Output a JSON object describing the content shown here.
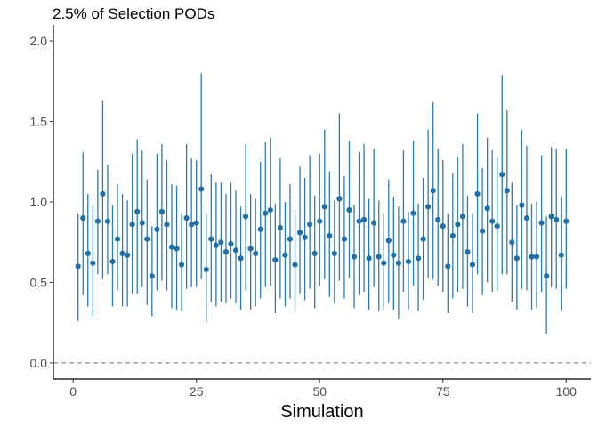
{
  "chart_data": {
    "type": "scatter",
    "title": "2.5% of Selection PODs",
    "xlabel": "Simulation",
    "ylabel": "",
    "xlim": [
      -4,
      105
    ],
    "ylim": [
      -0.1,
      2.1
    ],
    "x_ticks": [
      0,
      25,
      50,
      75,
      100
    ],
    "x_tick_labels": [
      "0",
      "25",
      "50",
      "75",
      "100"
    ],
    "y_ticks": [
      0.0,
      0.5,
      1.0,
      1.5,
      2.0
    ],
    "y_tick_labels": [
      "0.0",
      "0.5",
      "1.0",
      "1.5",
      "2.0"
    ],
    "reference_line": {
      "y": 0,
      "style": "dashed"
    },
    "grid": false,
    "point_color": "#1f6fa9",
    "line_color": "#2b7bba",
    "reference_color": "#888888",
    "series": [
      {
        "x": [
          1,
          2,
          3,
          4,
          5,
          6,
          7,
          8,
          9,
          10,
          11,
          12,
          13,
          14,
          15,
          16,
          17,
          18,
          19,
          20,
          21,
          22,
          23,
          24,
          25,
          26,
          27,
          28,
          29,
          30,
          31,
          32,
          33,
          34,
          35,
          36,
          37,
          38,
          39,
          40,
          41,
          42,
          43,
          44,
          45,
          46,
          47,
          48,
          49,
          50,
          51,
          52,
          53,
          54,
          55,
          56,
          57,
          58,
          59,
          60,
          61,
          62,
          63,
          64,
          65,
          66,
          67,
          68,
          69,
          70,
          71,
          72,
          73,
          74,
          75,
          76,
          77,
          78,
          79,
          80,
          81,
          82,
          83,
          84,
          85,
          86,
          87,
          88,
          89,
          90,
          91,
          92,
          93,
          94,
          95,
          96,
          97,
          98,
          99,
          100
        ],
        "y": [
          0.6,
          0.9,
          0.68,
          0.62,
          0.88,
          1.05,
          0.88,
          0.63,
          0.77,
          0.68,
          0.67,
          0.86,
          0.94,
          0.87,
          0.77,
          0.54,
          0.83,
          0.94,
          0.86,
          0.72,
          0.71,
          0.61,
          0.9,
          0.86,
          0.87,
          1.08,
          0.58,
          0.77,
          0.73,
          0.75,
          0.69,
          0.74,
          0.7,
          0.65,
          0.91,
          0.71,
          0.68,
          0.83,
          0.93,
          0.95,
          0.64,
          0.84,
          0.67,
          0.77,
          0.61,
          0.81,
          0.78,
          0.86,
          0.68,
          0.88,
          0.97,
          0.79,
          0.68,
          1.02,
          0.77,
          0.95,
          0.66,
          0.88,
          0.89,
          0.65,
          0.87,
          0.66,
          0.62,
          0.76,
          0.67,
          0.62,
          0.88,
          0.63,
          0.93,
          0.65,
          0.77,
          0.97,
          1.07,
          0.89,
          0.85,
          0.6,
          0.79,
          0.86,
          0.91,
          0.69,
          0.61,
          1.05,
          0.82,
          0.96,
          0.88,
          0.85,
          1.17,
          1.07,
          0.75,
          0.65,
          0.98,
          0.9,
          0.66,
          0.66,
          0.87,
          0.54,
          0.91,
          0.89,
          0.67,
          0.88
        ],
        "lower": [
          0.26,
          0.42,
          0.35,
          0.29,
          0.55,
          0.52,
          0.55,
          0.35,
          0.45,
          0.35,
          0.35,
          0.43,
          0.43,
          0.47,
          0.36,
          0.29,
          0.45,
          0.51,
          0.45,
          0.34,
          0.33,
          0.32,
          0.46,
          0.47,
          0.47,
          0.52,
          0.25,
          0.38,
          0.35,
          0.38,
          0.37,
          0.4,
          0.37,
          0.33,
          0.45,
          0.33,
          0.35,
          0.4,
          0.47,
          0.48,
          0.31,
          0.4,
          0.35,
          0.4,
          0.31,
          0.43,
          0.39,
          0.46,
          0.34,
          0.48,
          0.52,
          0.41,
          0.37,
          0.51,
          0.4,
          0.53,
          0.34,
          0.42,
          0.44,
          0.33,
          0.47,
          0.32,
          0.33,
          0.37,
          0.33,
          0.27,
          0.44,
          0.33,
          0.48,
          0.32,
          0.39,
          0.53,
          0.52,
          0.48,
          0.44,
          0.31,
          0.4,
          0.44,
          0.46,
          0.35,
          0.31,
          0.55,
          0.42,
          0.5,
          0.44,
          0.45,
          0.55,
          0.55,
          0.38,
          0.33,
          0.46,
          0.45,
          0.33,
          0.34,
          0.44,
          0.18,
          0.47,
          0.46,
          0.32,
          0.46
        ],
        "upper": [
          0.93,
          1.31,
          1.05,
          0.98,
          1.2,
          1.63,
          1.23,
          0.98,
          1.11,
          1.05,
          1.01,
          1.3,
          1.39,
          1.32,
          1.14,
          0.85,
          1.3,
          1.36,
          1.26,
          1.11,
          1.1,
          0.93,
          1.36,
          1.27,
          1.26,
          1.8,
          0.93,
          1.17,
          1.12,
          1.12,
          1.05,
          1.12,
          1.07,
          0.97,
          1.36,
          1.05,
          1.02,
          1.25,
          1.37,
          1.4,
          0.99,
          1.27,
          1.0,
          1.11,
          0.95,
          1.22,
          1.15,
          1.29,
          1.04,
          1.3,
          1.45,
          1.19,
          1.01,
          1.55,
          1.16,
          1.38,
          0.98,
          1.31,
          1.36,
          1.02,
          1.33,
          1.01,
          0.93,
          1.14,
          1.03,
          0.97,
          1.32,
          0.94,
          1.38,
          0.99,
          1.15,
          1.45,
          1.62,
          1.33,
          1.26,
          0.93,
          1.18,
          1.28,
          1.36,
          1.04,
          0.93,
          1.55,
          1.21,
          1.4,
          1.32,
          1.28,
          1.79,
          1.57,
          1.12,
          0.98,
          1.45,
          1.35,
          0.99,
          1.0,
          1.29,
          0.91,
          1.34,
          1.33,
          1.03,
          1.33
        ]
      }
    ]
  }
}
